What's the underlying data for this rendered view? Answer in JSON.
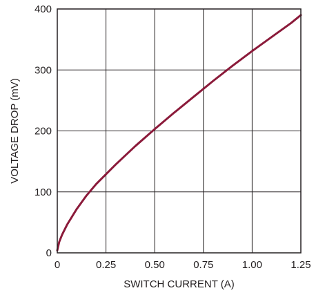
{
  "chart_data": {
    "type": "line",
    "title": "",
    "xlabel": "SWITCH CURRENT (A)",
    "ylabel": "VOLTAGE DROP (mV)",
    "xlim": [
      0,
      1.25
    ],
    "ylim": [
      0,
      400
    ],
    "x_ticks": [
      0,
      0.25,
      0.5,
      0.75,
      1.0,
      1.25
    ],
    "x_tick_labels": [
      "0",
      "0.25",
      "0.50",
      "0.75",
      "1.00",
      "1.25"
    ],
    "y_ticks": [
      0,
      100,
      200,
      300,
      400
    ],
    "y_tick_labels": [
      "0",
      "100",
      "200",
      "300",
      "400"
    ],
    "grid": true,
    "legend": "none",
    "series": [
      {
        "color": "#8b1a3a",
        "x": [
          0,
          0.01,
          0.025,
          0.05,
          0.1,
          0.15,
          0.2,
          0.25,
          0.3,
          0.4,
          0.5,
          0.6,
          0.7,
          0.8,
          0.9,
          1.0,
          1.1,
          1.2,
          1.25
        ],
        "y": [
          4,
          18,
          30,
          46,
          72,
          94,
          113,
          129,
          145,
          175,
          203,
          230,
          256,
          282,
          307,
          331,
          354,
          377,
          390
        ]
      }
    ]
  }
}
